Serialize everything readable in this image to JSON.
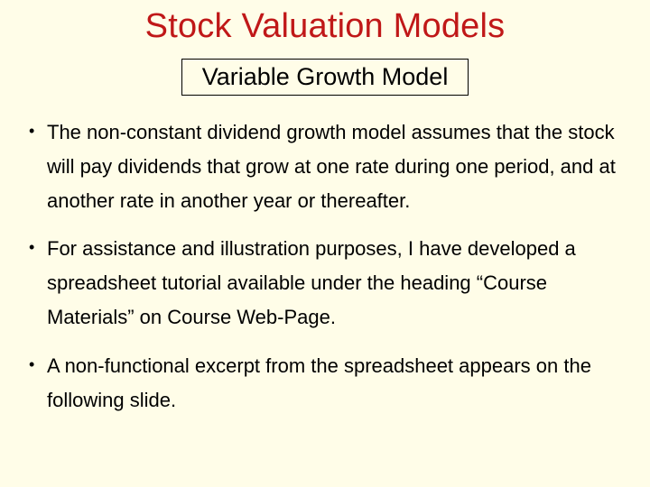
{
  "background_color": "#fffde8",
  "title": {
    "text": "Stock Valuation Models",
    "color": "#c01818",
    "fontsize": 38
  },
  "subtitle": {
    "text": "Variable Growth Model",
    "border_color": "#000000",
    "fontsize": 27,
    "color": "#000000"
  },
  "bullets": {
    "fontsize": 22,
    "color": "#000000",
    "items": [
      "The non-constant dividend growth model assumes that the stock will pay dividends that grow at one rate during one period, and at another rate in another year or thereafter.",
      "For assistance and illustration purposes, I have developed a spreadsheet tutorial available under the heading “Course Materials” on Course Web-Page.",
      "A non-functional excerpt from the spreadsheet appears on the following slide."
    ]
  }
}
